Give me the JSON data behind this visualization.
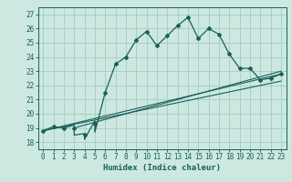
{
  "title": "",
  "xlabel": "Humidex (Indice chaleur)",
  "ylabel": "",
  "background_color": "#cce8e0",
  "grid_color": "#aacfc8",
  "line_color": "#1a5f5a",
  "xlim": [
    -0.5,
    23.5
  ],
  "ylim": [
    17.5,
    27.5
  ],
  "xticks": [
    0,
    1,
    2,
    3,
    4,
    5,
    6,
    7,
    8,
    9,
    10,
    11,
    12,
    13,
    14,
    15,
    16,
    17,
    18,
    19,
    20,
    21,
    22,
    23
  ],
  "yticks": [
    18,
    19,
    20,
    21,
    22,
    23,
    24,
    25,
    26,
    27
  ],
  "main_line": [
    [
      0,
      18.8
    ],
    [
      1,
      19.1
    ],
    [
      2,
      19.0
    ],
    [
      3,
      19.2
    ],
    [
      3,
      18.5
    ],
    [
      4,
      18.6
    ],
    [
      4,
      18.2
    ],
    [
      5,
      19.5
    ],
    [
      5,
      18.7
    ],
    [
      6,
      21.5
    ],
    [
      7,
      23.5
    ],
    [
      8,
      24.0
    ],
    [
      9,
      25.2
    ],
    [
      10,
      25.8
    ],
    [
      11,
      24.8
    ],
    [
      12,
      25.5
    ],
    [
      13,
      26.2
    ],
    [
      14,
      26.8
    ],
    [
      15,
      25.3
    ],
    [
      16,
      26.0
    ],
    [
      17,
      25.6
    ],
    [
      18,
      24.2
    ],
    [
      19,
      23.2
    ],
    [
      20,
      23.2
    ],
    [
      21,
      22.4
    ],
    [
      22,
      22.5
    ],
    [
      23,
      22.8
    ]
  ],
  "line1": [
    [
      0,
      18.8
    ],
    [
      23,
      22.8
    ]
  ],
  "line2": [
    [
      0,
      18.8
    ],
    [
      23,
      22.3
    ]
  ],
  "line3": [
    [
      3,
      19.0
    ],
    [
      23,
      23.0
    ]
  ],
  "markers_x": [
    0,
    1,
    2,
    3,
    4,
    5,
    6,
    7,
    8,
    9,
    10,
    11,
    12,
    13,
    14,
    15,
    16,
    17,
    18,
    19,
    20,
    21,
    22,
    23
  ],
  "markers_y": [
    18.8,
    19.1,
    19.0,
    19.0,
    18.5,
    19.3,
    21.5,
    23.5,
    24.0,
    25.2,
    25.8,
    24.8,
    25.5,
    26.2,
    26.8,
    25.3,
    26.0,
    25.6,
    24.2,
    23.2,
    23.2,
    22.4,
    22.5,
    22.8
  ]
}
